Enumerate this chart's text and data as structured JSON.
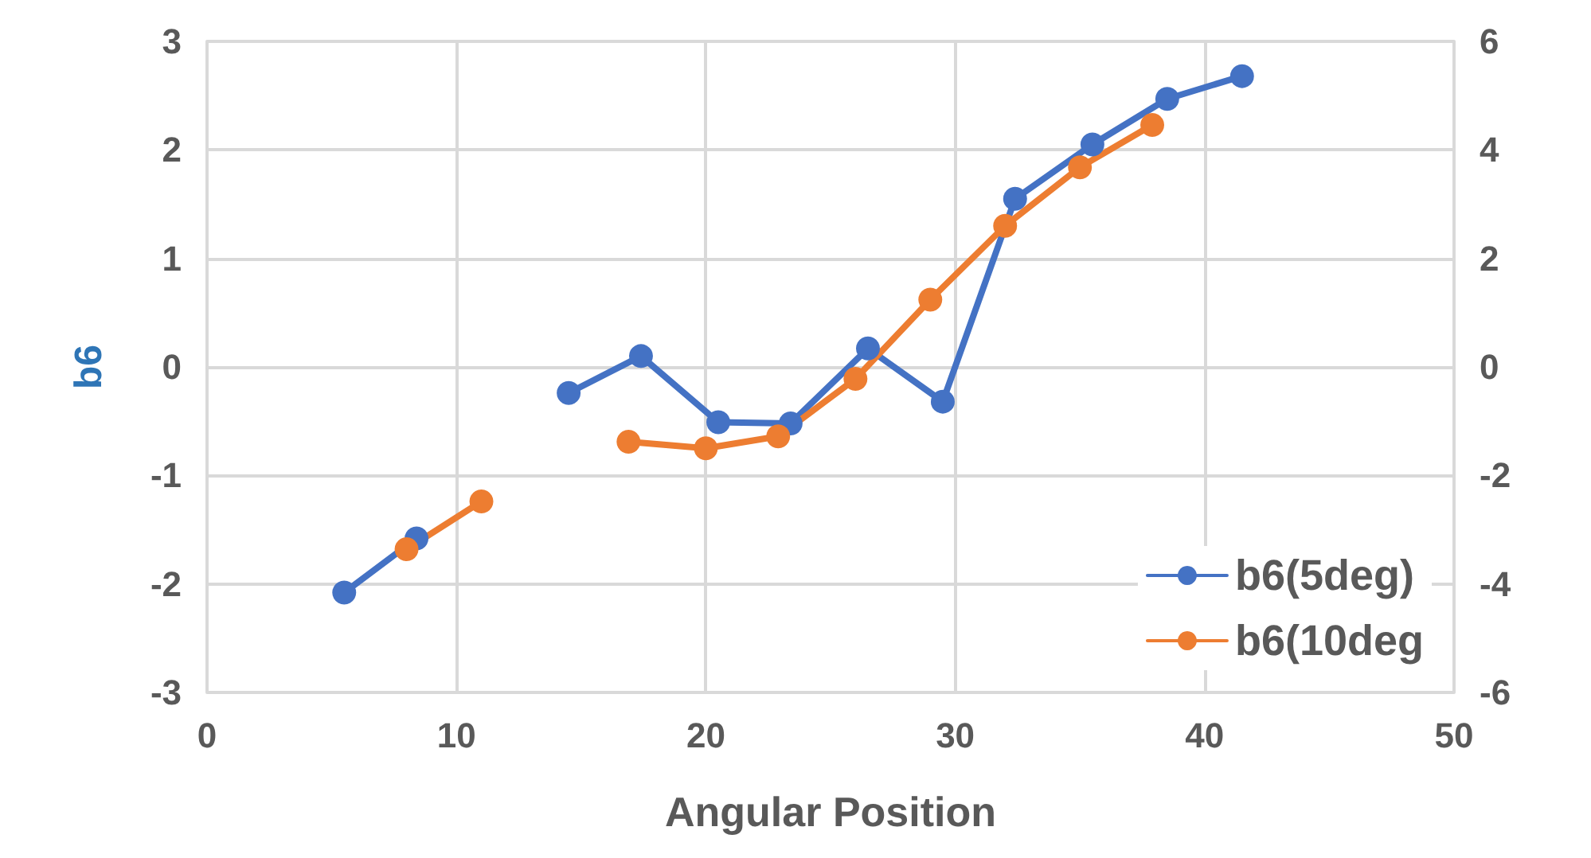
{
  "chart_data": {
    "type": "line",
    "xlabel": "Angular Position",
    "ylabel": "b6",
    "xlim": [
      0,
      50
    ],
    "xticks": [
      0,
      10,
      20,
      30,
      40,
      50
    ],
    "ylim": [
      -3,
      3
    ],
    "yticks": [
      -3,
      -2,
      -1,
      0,
      1,
      2,
      3
    ],
    "y2lim": [
      -6,
      6
    ],
    "y2ticks": [
      -6,
      -4,
      -2,
      0,
      2,
      4,
      6
    ],
    "grid": true,
    "legend": "bottom right",
    "marker": "circle",
    "line_style": "solid",
    "series": [
      {
        "name": "b6(5deg)",
        "color": "#4472c4",
        "x": [
          5.5,
          8.4,
          null,
          14.5,
          17.4,
          20.5,
          23.4,
          26.5,
          29.5,
          32.4,
          35.5,
          38.5,
          41.5
        ],
        "values": [
          -2.08,
          -1.58,
          null,
          -0.24,
          0.1,
          -0.51,
          -0.52,
          0.17,
          -0.32,
          1.55,
          2.05,
          2.47,
          2.68
        ]
      },
      {
        "name": "b6(10deg",
        "color": "#ed7d31",
        "axis": "y2",
        "x": [
          8.0,
          11.0,
          null,
          16.9,
          20.0,
          22.9,
          26.0,
          29.0,
          32.0,
          35.0,
          37.9
        ],
        "values": [
          -3.36,
          -2.48,
          null,
          -1.38,
          -1.5,
          -1.28,
          -0.22,
          1.24,
          2.6,
          3.68,
          4.46
        ]
      }
    ]
  }
}
